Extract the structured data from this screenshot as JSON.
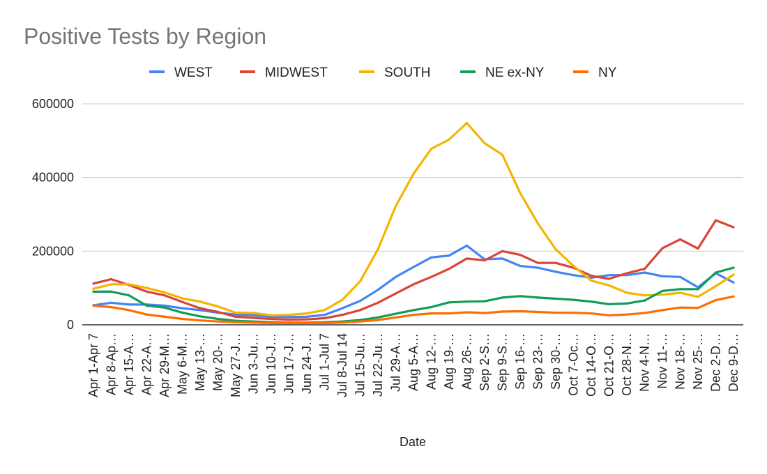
{
  "chart_data": {
    "type": "line",
    "title": "Positive Tests by Region",
    "xlabel": "Date",
    "ylabel": "",
    "ylim": [
      0,
      600000
    ],
    "yticks": [
      0,
      200000,
      400000,
      600000
    ],
    "grid": true,
    "legend_position": "top",
    "categories": [
      "Apr 1-Apr 7",
      "Apr 8-Ap…",
      "Apr 15-A…",
      "Apr 22-A…",
      "Apr 29-M…",
      "May 6-M…",
      "May 13-…",
      "May 20-…",
      "May 27-J…",
      "Jun 3-Ju…",
      "Jun 10-J…",
      "Jun 17-J…",
      "Jun 24-J…",
      "Jul 1-Jul 7",
      "Jul 8-Jul 14",
      "Jul 15-Ju…",
      "Jul 22-Ju…",
      "Jul 29-A…",
      "Aug 5-A…",
      "Aug 12-…",
      "Aug 19-…",
      "Aug 26-…",
      "Sep 2-S…",
      "Sep 9-S…",
      "Sep 16-…",
      "Sep 23-…",
      "Sep 30-…",
      "Oct 7-Oc…",
      "Oct 14-O…",
      "Oct 21-O…",
      "Oct 28-N…",
      "Nov 4-N…",
      "Nov 11-…",
      "Nov 18-…",
      "Nov 25-…",
      "Dec 2-D…",
      "Dec 9-D…"
    ],
    "series": [
      {
        "name": "WEST",
        "color": "#4285F4",
        "values": [
          53000,
          60000,
          55000,
          55000,
          52000,
          45000,
          40000,
          33000,
          28000,
          26000,
          22000,
          21000,
          22000,
          27000,
          45000,
          65000,
          95000,
          130000,
          157000,
          183000,
          188000,
          215000,
          178000,
          180000,
          160000,
          155000,
          144000,
          135000,
          128000,
          135000,
          135000,
          142000,
          132000,
          130000,
          102000,
          140000,
          115000
        ]
      },
      {
        "name": "MIDWEST",
        "color": "#DB4437",
        "values": [
          112000,
          124000,
          108000,
          90000,
          80000,
          62000,
          45000,
          35000,
          22000,
          19000,
          16000,
          14000,
          15000,
          18000,
          27000,
          40000,
          60000,
          85000,
          110000,
          130000,
          152000,
          180000,
          175000,
          200000,
          190000,
          168000,
          168000,
          155000,
          133000,
          125000,
          140000,
          152000,
          208000,
          232000,
          207000,
          284000,
          265000
        ]
      },
      {
        "name": "SOUTH",
        "color": "#F4B400",
        "values": [
          98000,
          110000,
          110000,
          100000,
          88000,
          72000,
          63000,
          50000,
          33000,
          32000,
          26000,
          27000,
          31000,
          40000,
          68000,
          118000,
          205000,
          322000,
          410000,
          478000,
          503000,
          548000,
          493000,
          462000,
          358000,
          275000,
          205000,
          160000,
          120000,
          107000,
          87000,
          80000,
          82000,
          87000,
          76000,
          105000,
          136000
        ]
      },
      {
        "name": "NE ex-NY",
        "color": "#0F9D58",
        "values": [
          90000,
          90000,
          80000,
          52000,
          47000,
          33000,
          23000,
          16000,
          11000,
          9000,
          7000,
          6000,
          6000,
          7000,
          9000,
          13000,
          20000,
          30000,
          40000,
          48000,
          61000,
          63000,
          64000,
          74000,
          78000,
          74000,
          71000,
          68000,
          63000,
          56000,
          58000,
          66000,
          92000,
          97000,
          97000,
          142000,
          155000
        ]
      },
      {
        "name": "NY",
        "color": "#FF6D01",
        "values": [
          52000,
          48000,
          40000,
          28000,
          22000,
          16000,
          12000,
          9000,
          7000,
          6000,
          5000,
          5000,
          5000,
          5000,
          6000,
          9000,
          13000,
          20000,
          27000,
          31000,
          31000,
          34000,
          32000,
          36000,
          37000,
          35000,
          33000,
          33000,
          31000,
          26000,
          28000,
          32000,
          40000,
          47000,
          46000,
          67000,
          77000
        ]
      }
    ]
  }
}
